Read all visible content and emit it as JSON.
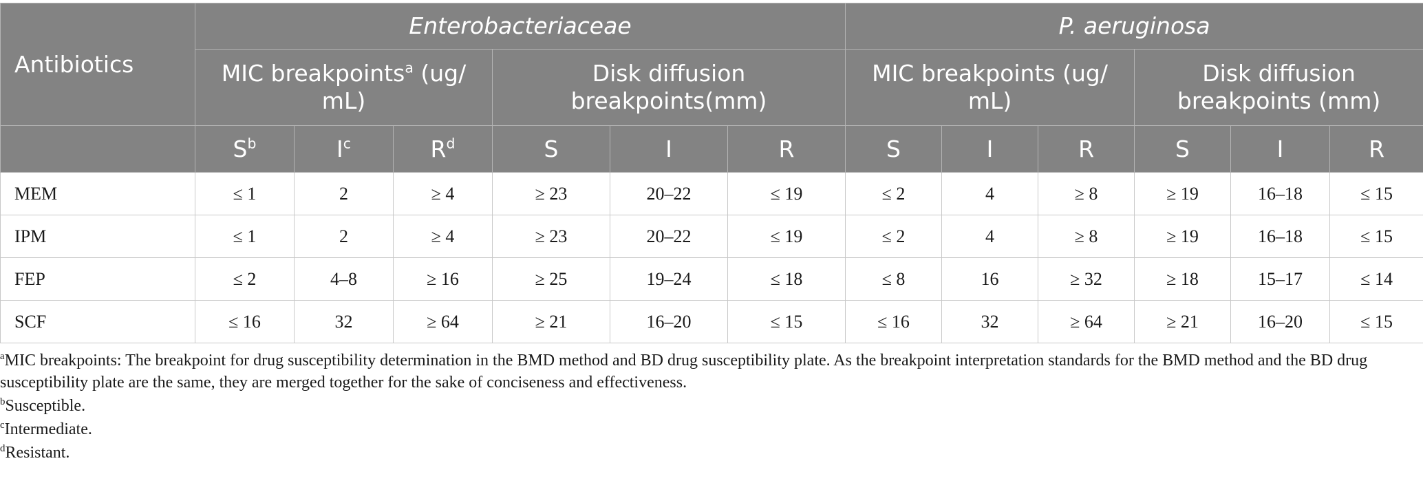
{
  "table": {
    "header": {
      "antibiotics": "Antibiotics",
      "group1": "Enterobacteriaceae",
      "group2": "P. aeruginosa",
      "mic1_text": "MIC breakpoints",
      "mic1_sup": "a",
      "mic1_unit": " (ug/ mL)",
      "disk1": "Disk diffusion breakpoints(mm)",
      "mic2": "MIC breakpoints (ug/ mL)",
      "disk2": "Disk diffusion breakpoints (mm)",
      "s": "S",
      "s_sup": "b",
      "i": "I",
      "i_sup": "c",
      "r": "R",
      "r_sup": "d"
    },
    "rows": [
      {
        "name": "MEM",
        "cells": [
          "≤ 1",
          "2",
          "≥ 4",
          "≥ 23",
          "20–22",
          "≤ 19",
          "≤ 2",
          "4",
          "≥ 8",
          "≥ 19",
          "16–18",
          "≤ 15"
        ]
      },
      {
        "name": "IPM",
        "cells": [
          "≤ 1",
          "2",
          "≥ 4",
          "≥ 23",
          "20–22",
          "≤ 19",
          "≤ 2",
          "4",
          "≥ 8",
          "≥ 19",
          "16–18",
          "≤ 15"
        ]
      },
      {
        "name": "FEP",
        "cells": [
          "≤ 2",
          "4–8",
          "≥ 16",
          "≥ 25",
          "19–24",
          "≤ 18",
          "≤ 8",
          "16",
          "≥ 32",
          "≥ 18",
          "15–17",
          "≤ 14"
        ]
      },
      {
        "name": "SCF",
        "cells": [
          "≤ 16",
          "32",
          "≥ 64",
          "≥ 21",
          "16–20",
          "≤ 15",
          "≤ 16",
          "32",
          "≥ 64",
          "≥ 21",
          "16–20",
          "≤ 15"
        ]
      }
    ]
  },
  "footnotes": [
    {
      "mark": "a",
      "text": "MIC breakpoints: The breakpoint for drug susceptibility determination in the BMD method and BD drug susceptibility plate. As the breakpoint interpretation standards for the BMD method and the BD drug susceptibility plate are the same, they are merged together for the sake of conciseness and effectiveness."
    },
    {
      "mark": "b",
      "text": "Susceptible."
    },
    {
      "mark": "c",
      "text": "Intermediate."
    },
    {
      "mark": "d",
      "text": "Resistant."
    }
  ]
}
